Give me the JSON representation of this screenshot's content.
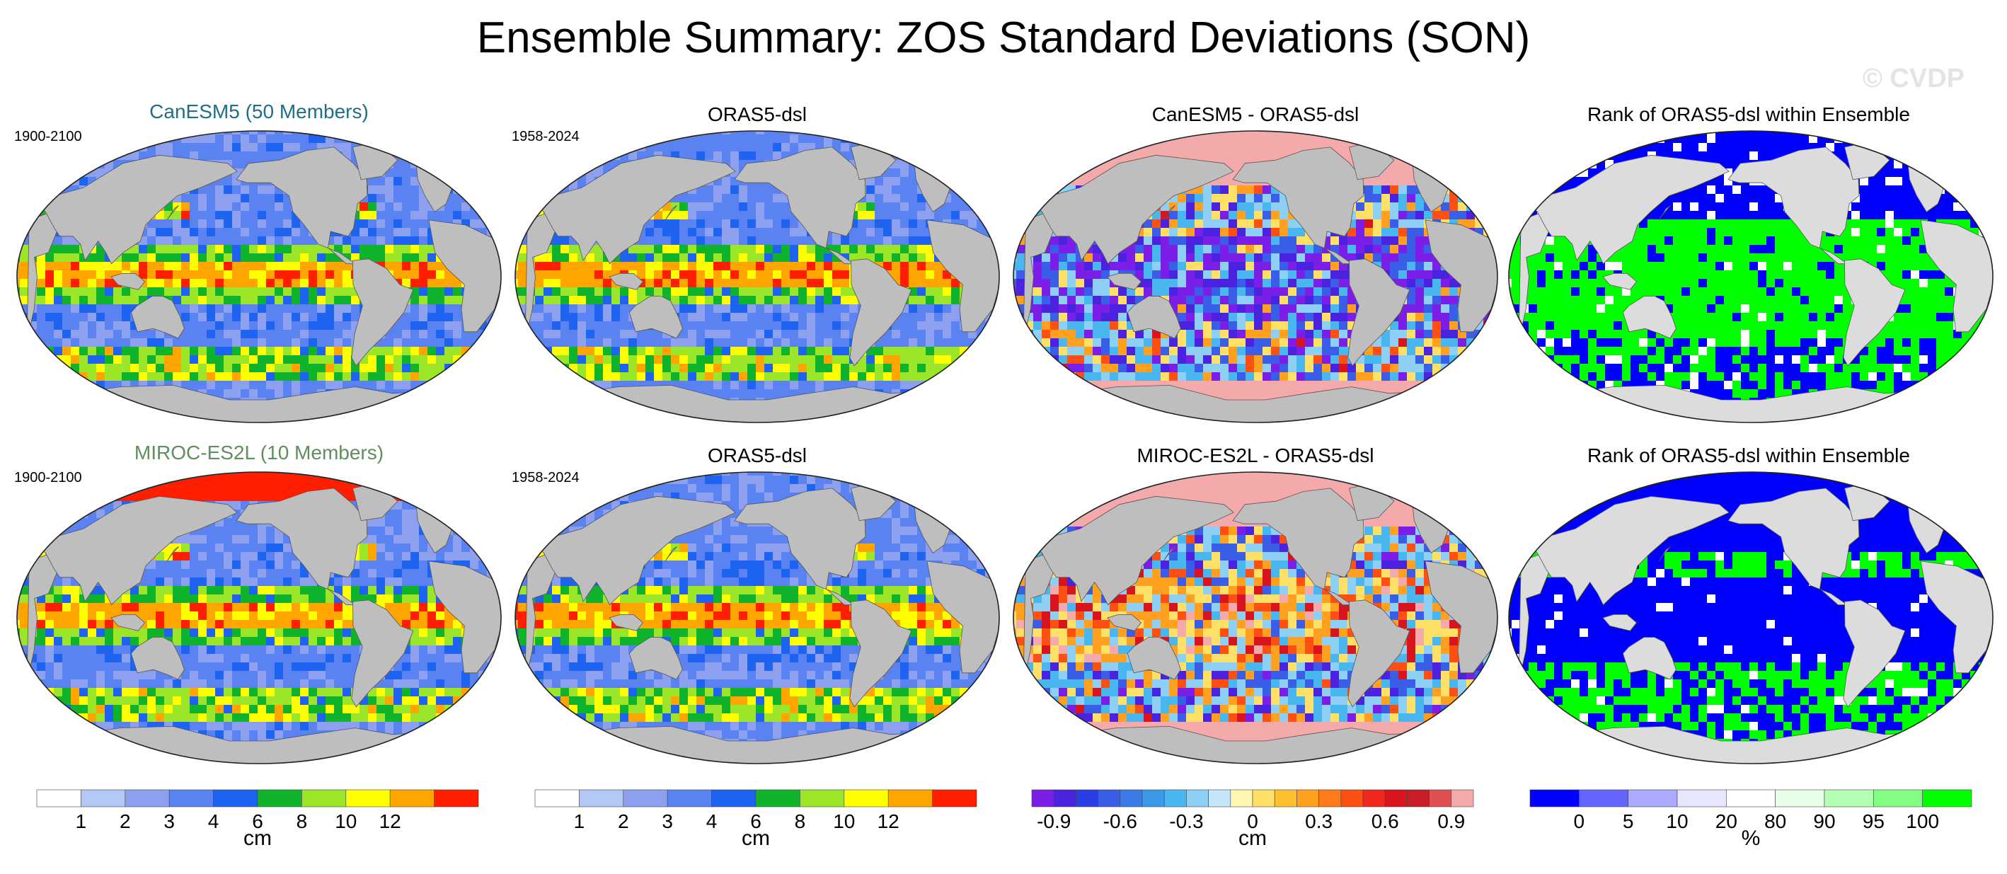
{
  "title": "Ensemble Summary: ZOS Standard Deviations (SON)",
  "watermark": "© CVDP",
  "panels": [
    {
      "title": "CanESM5 (50 Members)",
      "title_color": "#1f6f86",
      "period": "1900-2100",
      "scheme": "std"
    },
    {
      "title": "ORAS5-dsl",
      "title_color": "#000000",
      "period": "1958-2024",
      "scheme": "std"
    },
    {
      "title": "CanESM5 - ORAS5-dsl",
      "title_color": "#000000",
      "period": "",
      "scheme": "diff"
    },
    {
      "title": "Rank of ORAS5-dsl within Ensemble",
      "title_color": "#000000",
      "period": "",
      "scheme": "rank"
    },
    {
      "title": "MIROC-ES2L (10 Members)",
      "title_color": "#5f8f5f",
      "period": "1900-2100",
      "scheme": "std"
    },
    {
      "title": "ORAS5-dsl",
      "title_color": "#000000",
      "period": "1958-2024",
      "scheme": "std"
    },
    {
      "title": "MIROC-ES2L - ORAS5-dsl",
      "title_color": "#000000",
      "period": "",
      "scheme": "diff"
    },
    {
      "title": "Rank of ORAS5-dsl within Ensemble",
      "title_color": "#000000",
      "period": "",
      "scheme": "rank"
    }
  ],
  "colorbars": [
    {
      "unit": "cm",
      "colors": [
        "#ffffff",
        "#b4c8f5",
        "#8ca0ef",
        "#5a82f0",
        "#1e64f0",
        "#10b42c",
        "#9be628",
        "#ffff00",
        "#ffa500",
        "#ff1e00"
      ],
      "ticks": [
        "1",
        "2",
        "3",
        "4",
        "6",
        "8",
        "10",
        "12"
      ]
    },
    {
      "unit": "cm",
      "colors": [
        "#ffffff",
        "#b4c8f5",
        "#8ca0ef",
        "#5a82f0",
        "#1e64f0",
        "#10b42c",
        "#9be628",
        "#ffff00",
        "#ffa500",
        "#ff1e00"
      ],
      "ticks": [
        "1",
        "2",
        "3",
        "4",
        "6",
        "8",
        "10",
        "12"
      ]
    },
    {
      "unit": "cm",
      "colors": [
        "#7b1fe8",
        "#4a22e0",
        "#2a3ee6",
        "#3a5ee8",
        "#3c7ae8",
        "#3a9ae8",
        "#4ab6f0",
        "#8ed0f5",
        "#c4e6f8",
        "#fff7b0",
        "#ffe066",
        "#ffc030",
        "#ffa020",
        "#ff7a18",
        "#ff5014",
        "#f0281e",
        "#d8141e",
        "#c81e28",
        "#e05050",
        "#f4aaaa"
      ],
      "ticks": [
        "-0.9",
        "-0.6",
        "-0.3",
        "0",
        "0.3",
        "0.6",
        "0.9"
      ]
    },
    {
      "unit": "%",
      "colors": [
        "#0000ff",
        "#6464ff",
        "#aaaaff",
        "#e6e6ff",
        "#ffffff",
        "#e6ffe6",
        "#b4ffb4",
        "#82ff82",
        "#00ff00"
      ],
      "ticks": [
        "0",
        "5",
        "10",
        "20",
        "80",
        "90",
        "95",
        "100"
      ]
    }
  ],
  "land_color": "#bebebe",
  "legend_colors": {
    "std": [
      "#b4c8f5",
      "#8ca0ef",
      "#5a82f0",
      "#1e64f0",
      "#10b42c",
      "#9be628",
      "#ffff00",
      "#ffa500",
      "#ff1e00"
    ],
    "diff": [
      "#7b1fe8",
      "#4a22e0",
      "#3a5ee8",
      "#4ab6f0",
      "#8ed0f5",
      "#ffe066",
      "#ffa020",
      "#ff5014",
      "#d8141e",
      "#f4aaaa"
    ],
    "rank": [
      "#0000ff",
      "#6464ff",
      "#e6e6ff",
      "#ffffff",
      "#b4ffb4",
      "#00ff00"
    ]
  }
}
